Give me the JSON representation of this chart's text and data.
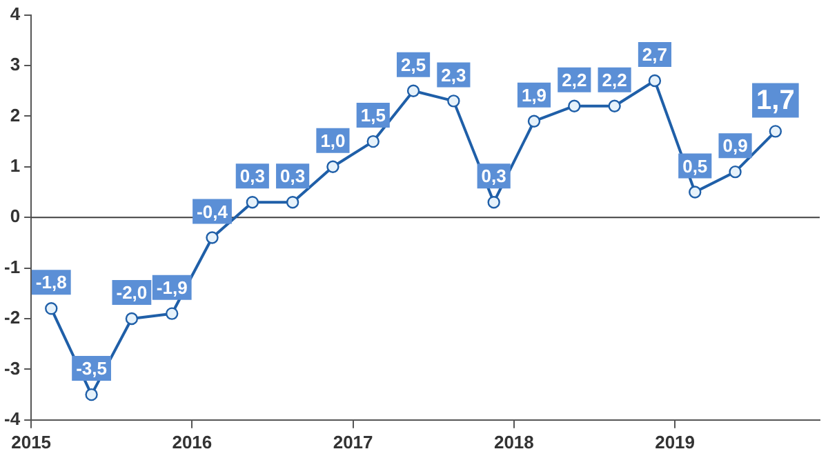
{
  "chart_data": {
    "type": "line",
    "x": [
      2015.125,
      2015.375,
      2015.625,
      2015.875,
      2016.125,
      2016.375,
      2016.625,
      2016.875,
      2017.125,
      2017.375,
      2017.625,
      2017.875,
      2018.125,
      2018.375,
      2018.625,
      2018.875,
      2019.125,
      2019.375,
      2019.625
    ],
    "series": [
      {
        "color": "#1f5fa8",
        "values": [
          -1.8,
          -3.5,
          -2.0,
          -1.9,
          -0.4,
          0.3,
          0.3,
          1.0,
          1.5,
          2.5,
          2.3,
          0.3,
          1.9,
          2.2,
          2.2,
          2.7,
          0.5,
          0.9,
          1.7
        ],
        "value_labels": [
          "-1,8",
          "-3,5",
          "-2,0",
          "-1,9",
          "-0,4",
          "0,3",
          "0,3",
          "1,0",
          "1,5",
          "2,5",
          "2,3",
          "0,3",
          "1,9",
          "2,2",
          "2,2",
          "2,7",
          "0,5",
          "0,9",
          "1,7"
        ]
      }
    ],
    "xlim": [
      2015,
      2019.9
    ],
    "xticks": [
      2015,
      2016,
      2017,
      2018,
      2019
    ],
    "ylim": [
      -4,
      4
    ],
    "yticks": [
      -4,
      -3,
      -2,
      -1,
      0,
      1,
      2,
      3,
      4
    ],
    "ref_lines": [
      {
        "axis": "y",
        "value": 0,
        "color": "#404040"
      }
    ],
    "grid": false,
    "legend": false,
    "marker": "circle",
    "line_style": "solid"
  }
}
